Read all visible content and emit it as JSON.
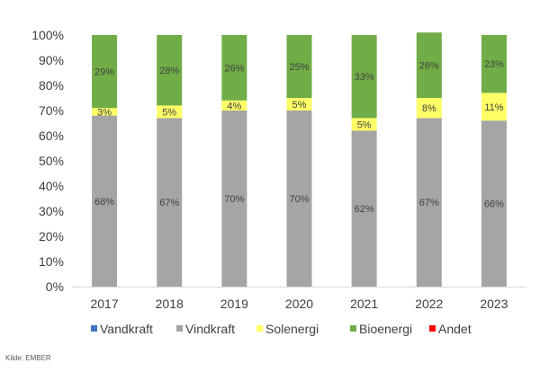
{
  "chart_data": {
    "type": "bar",
    "stacked": true,
    "normalized": true,
    "categories": [
      "2017",
      "2018",
      "2019",
      "2020",
      "2021",
      "2022",
      "2023"
    ],
    "ylim": [
      0,
      100
    ],
    "yticks": [
      "0%",
      "10%",
      "20%",
      "30%",
      "40%",
      "50%",
      "60%",
      "70%",
      "80%",
      "90%",
      "100%"
    ],
    "grid": false,
    "legend_position": "bottom",
    "series": [
      {
        "name": "Vandkraft",
        "color": "#4472C4",
        "values": [
          0,
          0,
          0,
          0,
          0,
          0,
          0
        ],
        "labels": [
          "",
          "",
          "",
          "",
          "",
          "",
          ""
        ]
      },
      {
        "name": "Vindkraft",
        "color": "#A5A5A5",
        "values": [
          68,
          67,
          70,
          70,
          62,
          67,
          66
        ],
        "labels": [
          "68%",
          "67%",
          "70%",
          "70%",
          "62%",
          "67%",
          "66%"
        ]
      },
      {
        "name": "Solenergi",
        "color": "#FFFF66",
        "values": [
          3,
          5,
          4,
          5,
          5,
          8,
          11
        ],
        "labels": [
          "3%",
          "5%",
          "4%",
          "5%",
          "5%",
          "8%",
          "11%"
        ]
      },
      {
        "name": "Bioenergi",
        "color": "#70AD47",
        "values": [
          29,
          28,
          26,
          25,
          33,
          26,
          23
        ],
        "labels": [
          "29%",
          "28%",
          "26%",
          "25%",
          "33%",
          "26%",
          "23%"
        ]
      },
      {
        "name": "Andet",
        "color": "#FF0000",
        "values": [
          0,
          0,
          0,
          0,
          0,
          0,
          0
        ],
        "labels": [
          "",
          "",
          "",
          "",
          "",
          "",
          ""
        ]
      }
    ]
  },
  "source": "Kilde: EMBER"
}
